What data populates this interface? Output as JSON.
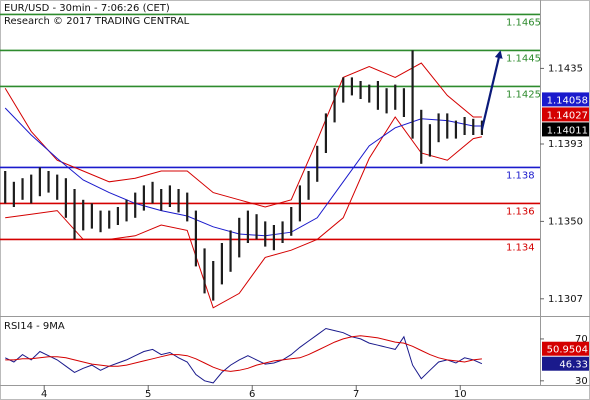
{
  "chart_data": [
    {
      "type": "ohlc",
      "title": "EUR/USD - 30min - 7:06:26 (CET)",
      "subtitle": "Research © 2017 TRADING CENTRAL",
      "x": [
        0,
        1,
        2,
        3,
        4,
        5,
        6,
        7,
        8,
        9,
        10,
        11,
        12,
        13,
        14,
        15,
        16,
        17,
        18,
        19,
        20,
        21,
        22,
        23,
        24,
        25,
        26,
        27,
        28,
        29,
        30,
        31,
        32,
        33,
        34,
        35,
        36,
        37,
        38,
        39,
        40,
        41,
        42,
        43,
        44,
        45,
        46,
        47,
        48,
        49,
        50,
        51,
        52,
        53,
        54,
        55
      ],
      "high": [
        1.1378,
        1.1372,
        1.1374,
        1.1376,
        1.138,
        1.1378,
        1.1376,
        1.1374,
        1.1368,
        1.1362,
        1.136,
        1.1356,
        1.1356,
        1.1358,
        1.1362,
        1.1366,
        1.137,
        1.1372,
        1.1368,
        1.137,
        1.1368,
        1.1366,
        1.1356,
        1.1335,
        1.1328,
        1.1338,
        1.1345,
        1.1352,
        1.1356,
        1.1354,
        1.135,
        1.1348,
        1.135,
        1.1358,
        1.137,
        1.1378,
        1.1392,
        1.141,
        1.1424,
        1.143,
        1.143,
        1.1428,
        1.1426,
        1.1428,
        1.1424,
        1.1426,
        1.1424,
        1.1445,
        1.1412,
        1.1404,
        1.141,
        1.141,
        1.1406,
        1.1408,
        1.1407,
        1.1406
      ],
      "low": [
        1.136,
        1.1358,
        1.1362,
        1.136,
        1.1364,
        1.1366,
        1.1362,
        1.1352,
        1.134,
        1.1345,
        1.1346,
        1.1344,
        1.1346,
        1.1348,
        1.135,
        1.1352,
        1.1356,
        1.136,
        1.1356,
        1.1358,
        1.1355,
        1.135,
        1.1325,
        1.131,
        1.1306,
        1.1315,
        1.1322,
        1.133,
        1.1338,
        1.134,
        1.1336,
        1.1334,
        1.1338,
        1.1342,
        1.135,
        1.1362,
        1.1372,
        1.1388,
        1.1405,
        1.1416,
        1.142,
        1.1418,
        1.1416,
        1.1412,
        1.141,
        1.1412,
        1.1408,
        1.1396,
        1.1382,
        1.1386,
        1.1394,
        1.1396,
        1.1396,
        1.1398,
        1.1398,
        1.1398
      ],
      "bar_color": "#1c1c1c",
      "upper_band": {
        "color": "#d40000",
        "x": [
          0,
          3,
          6,
          9,
          12,
          15,
          18,
          21,
          24,
          27,
          30,
          33,
          36,
          39,
          42,
          45,
          48,
          51,
          54,
          55
        ],
        "values": [
          1.1424,
          1.14,
          1.1384,
          1.1378,
          1.1372,
          1.1374,
          1.1378,
          1.1378,
          1.1366,
          1.1362,
          1.1358,
          1.1362,
          1.1395,
          1.143,
          1.1436,
          1.143,
          1.1438,
          1.142,
          1.1408,
          1.1408
        ]
      },
      "lower_band": {
        "color": "#d40000",
        "x": [
          0,
          3,
          6,
          9,
          12,
          15,
          18,
          21,
          24,
          27,
          30,
          33,
          36,
          39,
          42,
          45,
          48,
          51,
          54,
          55
        ],
        "values": [
          1.1352,
          1.1354,
          1.1356,
          1.134,
          1.134,
          1.1342,
          1.1348,
          1.1345,
          1.1302,
          1.131,
          1.133,
          1.1334,
          1.134,
          1.1352,
          1.1385,
          1.1408,
          1.1388,
          1.1384,
          1.1396,
          1.1397
        ]
      },
      "moving_average": {
        "color": "#1a1acc",
        "x": [
          0,
          3,
          6,
          9,
          12,
          15,
          18,
          21,
          24,
          27,
          30,
          33,
          36,
          39,
          42,
          45,
          48,
          51,
          54,
          55
        ],
        "values": [
          1.1413,
          1.1398,
          1.1385,
          1.1373,
          1.1366,
          1.136,
          1.1356,
          1.1353,
          1.1347,
          1.1343,
          1.1342,
          1.1344,
          1.1352,
          1.1372,
          1.1392,
          1.1402,
          1.1407,
          1.1406,
          1.1403,
          1.1403
        ]
      },
      "projection": {
        "color": "#0b1a7a",
        "x": [
          55,
          57.1
        ],
        "values": [
          1.1401,
          1.1444
        ]
      },
      "levels": [
        {
          "value": 1.1465,
          "color": "#2e8b2e"
        },
        {
          "value": 1.1445,
          "color": "#2e8b2e"
        },
        {
          "value": 1.1425,
          "color": "#2e8b2e"
        },
        {
          "value": 1.138,
          "color": "#1a1acc"
        },
        {
          "value": 1.136,
          "color": "#d40000"
        },
        {
          "value": 1.134,
          "color": "#d40000"
        }
      ],
      "price_tags": [
        {
          "value": 1.14058,
          "color": "#1a1acc"
        },
        {
          "value": 1.14027,
          "color": "#d40000"
        },
        {
          "value": 1.14011,
          "color": "#000000"
        }
      ],
      "xlim": [
        -0.6,
        61.7
      ],
      "xticks": [
        {
          "value": 4.5,
          "label": "4"
        },
        {
          "value": 16.5,
          "label": "5"
        },
        {
          "value": 28.5,
          "label": "6"
        },
        {
          "value": 40.5,
          "label": "7"
        },
        {
          "value": 52.5,
          "label": "10"
        }
      ],
      "ylim": [
        1.1298,
        1.1473
      ],
      "yticks": [
        1.1435,
        1.1393,
        {
          "value": 1.135,
          "label": "1.1350"
        },
        1.1307
      ]
    },
    {
      "type": "line",
      "title": "RSI14 - 9MA",
      "x": [
        0,
        1,
        2,
        3,
        4,
        5,
        6,
        7,
        8,
        9,
        10,
        11,
        12,
        13,
        14,
        15,
        16,
        17,
        18,
        19,
        20,
        21,
        22,
        23,
        24,
        25,
        26,
        27,
        28,
        29,
        30,
        31,
        32,
        33,
        34,
        35,
        36,
        37,
        38,
        39,
        40,
        41,
        42,
        43,
        44,
        45,
        46,
        47,
        48,
        49,
        50,
        51,
        52,
        53,
        54,
        55
      ],
      "series": [
        {
          "color": "#1a1a8c",
          "values": [
            52,
            48,
            55,
            50,
            58,
            54,
            50,
            44,
            38,
            42,
            45,
            40,
            44,
            47,
            50,
            54,
            58,
            60,
            55,
            57,
            52,
            48,
            36,
            30,
            28,
            38,
            45,
            50,
            54,
            50,
            46,
            47,
            50,
            55,
            62,
            68,
            74,
            80,
            78,
            76,
            72,
            70,
            66,
            64,
            62,
            60,
            72,
            45,
            32,
            40,
            48,
            50,
            47,
            52,
            50,
            46.33
          ]
        },
        {
          "color": "#d40000",
          "values": [
            50,
            50,
            51,
            51,
            52,
            53,
            53,
            52,
            50,
            48,
            46,
            45,
            44,
            44,
            45,
            47,
            49,
            51,
            53,
            55,
            55,
            54,
            51,
            47,
            43,
            40,
            39,
            40,
            42,
            45,
            47,
            49,
            50,
            51,
            52,
            55,
            59,
            63,
            67,
            70,
            72,
            73,
            72,
            71,
            69,
            67,
            66,
            63,
            59,
            55,
            52,
            50,
            49,
            48,
            50,
            50.9504
          ]
        }
      ],
      "price_tags": [
        {
          "value": 50.9504,
          "color": "#d40000"
        },
        {
          "value": 46.33,
          "color": "#1a1a8c"
        }
      ],
      "xlim": [
        -0.6,
        61.7
      ],
      "ylim": [
        26,
        90
      ],
      "yticks": [
        70,
        30
      ]
    }
  ]
}
